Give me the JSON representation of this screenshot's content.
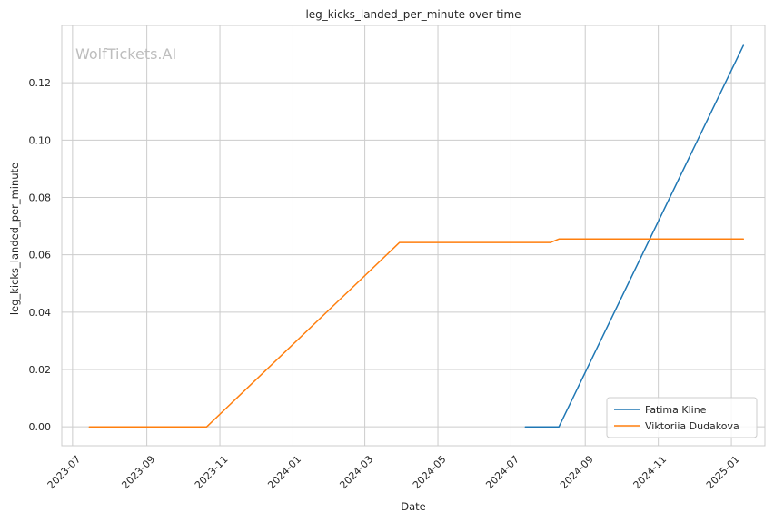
{
  "chart_data": {
    "type": "line",
    "title": "leg_kicks_landed_per_minute over time",
    "xlabel": "Date",
    "ylabel": "leg_kicks_landed_per_minute",
    "watermark": "WolfTickets.AI",
    "x_type": "date",
    "xlim": [
      "2023-06-22",
      "2025-01-29"
    ],
    "ylim": [
      -0.0066,
      0.14
    ],
    "x_ticks": [
      "2023-07-01",
      "2023-09-01",
      "2023-11-01",
      "2024-01-01",
      "2024-03-01",
      "2024-05-01",
      "2024-07-01",
      "2024-09-01",
      "2024-11-01",
      "2025-01-01"
    ],
    "x_tick_labels": [
      "2023-07",
      "2023-09",
      "2023-11",
      "2024-01",
      "2024-03",
      "2024-05",
      "2024-07",
      "2024-09",
      "2024-11",
      "2025-01"
    ],
    "y_ticks": [
      0.0,
      0.02,
      0.04,
      0.06,
      0.08,
      0.1,
      0.12
    ],
    "y_tick_labels": [
      "0.00",
      "0.02",
      "0.04",
      "0.06",
      "0.08",
      "0.10",
      "0.12"
    ],
    "grid": true,
    "legend_position": "bottom-right",
    "series": [
      {
        "name": "Fatima Kline",
        "color": "#1f77b4",
        "x": [
          "2024-07-13",
          "2024-08-10",
          "2025-01-11"
        ],
        "y": [
          0.0,
          0.0,
          0.133
        ]
      },
      {
        "name": "Viktoriia Dudakova",
        "color": "#ff7f0e",
        "x": [
          "2023-07-15",
          "2023-10-21",
          "2024-03-30",
          "2024-08-03",
          "2024-08-10",
          "2025-01-11"
        ],
        "y": [
          0.0,
          0.0,
          0.0643,
          0.0643,
          0.0655,
          0.0655
        ]
      }
    ]
  }
}
